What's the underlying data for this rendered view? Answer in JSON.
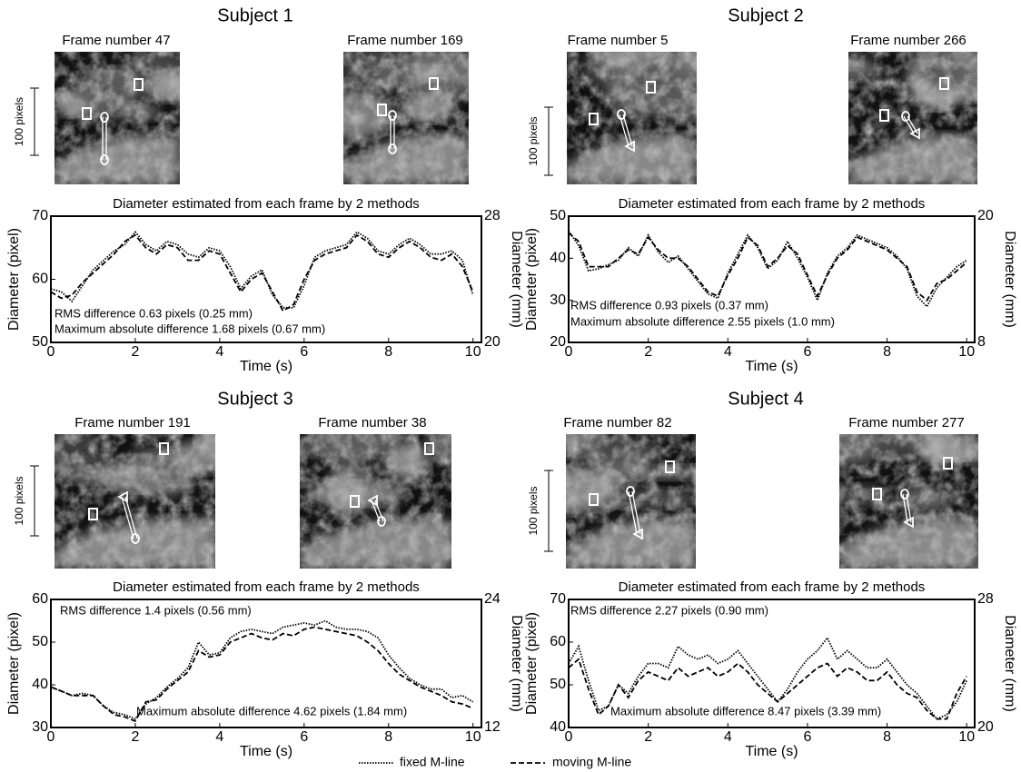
{
  "panels": [
    {
      "title": "Subject 1",
      "frames": [
        "Frame number 47",
        "Frame number 169"
      ],
      "scale_label": "100 pixels"
    },
    {
      "title": "Subject 2",
      "frames": [
        "Frame number 5",
        "Frame number 266"
      ],
      "scale_label": "100 pixels"
    },
    {
      "title": "Subject 3",
      "frames": [
        "Frame number 191",
        "Frame number 38"
      ],
      "scale_label": "100 pixels"
    },
    {
      "title": "Subject 4",
      "frames": [
        "Frame number 82",
        "Frame number 277"
      ],
      "scale_label": "100 pixels"
    }
  ],
  "legend": [
    {
      "name": "fixed M-line",
      "style": "dotted"
    },
    {
      "name": "moving M-line",
      "style": "dashed"
    }
  ],
  "chart_data": [
    {
      "type": "line",
      "title": "Diameter estimated from each frame by 2 methods",
      "x_label": "Time (s)",
      "y_label": "Diameter (pixel)",
      "y2_label": "Diameter (mm)",
      "annotations": [
        "RMS difference 0.63 pixels (0.25 mm)",
        "Maximum absolute difference 1.68 pixels (0.67 mm)"
      ],
      "xlim": [
        0,
        10.2
      ],
      "xticks": [
        0,
        2,
        4,
        6,
        8,
        10
      ],
      "ylim": [
        50,
        70
      ],
      "yticks": [
        50,
        60,
        70
      ],
      "y2lim": [
        20,
        28
      ],
      "y2ticks": [
        20,
        28
      ],
      "x": [
        0,
        0.25,
        0.5,
        0.75,
        1,
        1.25,
        1.5,
        1.75,
        2,
        2.25,
        2.5,
        2.75,
        3,
        3.25,
        3.5,
        3.75,
        4,
        4.25,
        4.5,
        4.75,
        5,
        5.25,
        5.5,
        5.75,
        6,
        6.25,
        6.5,
        6.75,
        7,
        7.25,
        7.5,
        7.75,
        8,
        8.25,
        8.5,
        8.75,
        9,
        9.25,
        9.5,
        9.75,
        10
      ],
      "series": [
        {
          "style": "dotted",
          "color": "#000000",
          "values": [
            58.5,
            58,
            56.5,
            59,
            61.5,
            63,
            64.5,
            65.5,
            67.5,
            65.5,
            64.5,
            66,
            65.5,
            64,
            63.5,
            65,
            64.5,
            62,
            58.5,
            60.5,
            61.5,
            57.5,
            55.5,
            55.5,
            59,
            63.5,
            64.5,
            65,
            65.5,
            67.5,
            66.5,
            64.5,
            64,
            65.5,
            66.5,
            65.5,
            64,
            64,
            64.5,
            63,
            57.5
          ]
        },
        {
          "style": "dashed",
          "color": "#000000",
          "values": [
            58,
            57,
            57.5,
            59.5,
            61,
            62.5,
            64,
            66,
            67,
            65,
            64,
            65.5,
            65,
            63,
            63,
            64.5,
            64,
            61,
            58,
            60,
            61,
            58,
            55,
            56,
            60,
            63,
            64,
            64.5,
            65,
            67,
            66,
            64,
            63.5,
            65,
            66,
            65,
            63.5,
            63,
            64,
            62,
            58
          ]
        }
      ]
    },
    {
      "type": "line",
      "title": "Diameter estimated from each frame by 2 methods",
      "x_label": "Time (s)",
      "y_label": "Diameter (pixel)",
      "y2_label": "Diameter (mm)",
      "annotations": [
        "RMS difference 0.93 pixels (0.37 mm)",
        "Maximum absolute difference 2.55 pixels (1.0 mm)"
      ],
      "xlim": [
        0,
        10.2
      ],
      "xticks": [
        0,
        2,
        4,
        6,
        8,
        10
      ],
      "ylim": [
        20,
        50
      ],
      "yticks": [
        20,
        30,
        40,
        50
      ],
      "y2lim": [
        8,
        20
      ],
      "y2ticks": [
        8,
        20
      ],
      "x": [
        0,
        0.25,
        0.5,
        0.75,
        1,
        1.25,
        1.5,
        1.75,
        2,
        2.25,
        2.5,
        2.75,
        3,
        3.25,
        3.5,
        3.75,
        4,
        4.25,
        4.5,
        4.75,
        5,
        5.25,
        5.5,
        5.75,
        6,
        6.25,
        6.5,
        6.75,
        7,
        7.25,
        7.5,
        7.75,
        8,
        8.25,
        8.5,
        8.75,
        9,
        9.25,
        9.5,
        9.75,
        10
      ],
      "series": [
        {
          "style": "dotted",
          "color": "#000000",
          "values": [
            46.5,
            43,
            37,
            37.5,
            38.5,
            39.5,
            42.5,
            40.5,
            45.5,
            41.5,
            39,
            40.5,
            37.5,
            34.5,
            31.5,
            30.5,
            36.5,
            41,
            45.5,
            42.5,
            37.5,
            39.5,
            44,
            40,
            35.5,
            30,
            36.5,
            40.5,
            42.5,
            45.5,
            44.5,
            43.5,
            42.5,
            40.5,
            37.5,
            31,
            28.5,
            33,
            35.5,
            38,
            39.5
          ]
        },
        {
          "style": "dashed",
          "color": "#000000",
          "values": [
            46,
            44,
            38,
            38,
            38,
            40,
            42,
            41,
            45,
            42,
            40,
            40,
            38,
            35,
            32,
            31,
            36,
            40,
            45,
            43,
            38,
            40,
            43,
            41,
            36,
            31,
            36,
            40,
            42,
            45,
            44,
            43,
            42,
            40,
            38,
            32,
            30,
            34,
            35,
            37,
            39
          ]
        }
      ]
    },
    {
      "type": "line",
      "title": "Diameter estimated from each frame by 2 methods",
      "x_label": "Time (s)",
      "y_label": "Diameter (pixel)",
      "y2_label": "Diameter (mm)",
      "annotations": [
        "RMS difference 1.4 pixels (0.56 mm)",
        "Maximum absolute difference 4.62 pixels (1.84 mm)"
      ],
      "xlim": [
        0,
        10.2
      ],
      "xticks": [
        0,
        2,
        4,
        6,
        8,
        10
      ],
      "ylim": [
        30,
        60
      ],
      "yticks": [
        30,
        40,
        50,
        60
      ],
      "y2lim": [
        12,
        24
      ],
      "y2ticks": [
        12,
        24
      ],
      "x": [
        0,
        0.25,
        0.5,
        0.75,
        1,
        1.25,
        1.5,
        1.75,
        2,
        2.25,
        2.5,
        2.75,
        3,
        3.25,
        3.5,
        3.75,
        4,
        4.25,
        4.5,
        4.75,
        5,
        5.25,
        5.5,
        5.75,
        6,
        6.25,
        6.5,
        6.75,
        7,
        7.25,
        7.5,
        7.75,
        8,
        8.25,
        8.5,
        8.75,
        9,
        9.25,
        9.5,
        9.75,
        10
      ],
      "series": [
        {
          "style": "dotted",
          "color": "#000000",
          "values": [
            39.5,
            38.5,
            37.5,
            38,
            37.5,
            35,
            33.5,
            33,
            32,
            35.5,
            37,
            39.5,
            41.5,
            44,
            50,
            47,
            47.5,
            51,
            52.5,
            53,
            52.5,
            52,
            53.5,
            54,
            54.5,
            54,
            55,
            53.5,
            53,
            53,
            52.5,
            51,
            47,
            44,
            41.5,
            40,
            39,
            39,
            37,
            37.5,
            36
          ]
        },
        {
          "style": "dashed",
          "color": "#000000",
          "values": [
            39.5,
            38.5,
            37.5,
            37.5,
            37.5,
            35,
            33,
            32.5,
            31.5,
            36,
            36.5,
            39,
            41,
            43,
            48,
            46.5,
            47,
            50,
            51,
            52,
            51,
            50.5,
            52,
            51.5,
            53,
            53.5,
            53,
            52.5,
            52,
            51.5,
            50,
            48,
            45,
            42.5,
            41,
            39.5,
            38.5,
            37.5,
            36,
            35.5,
            34.5
          ]
        }
      ]
    },
    {
      "type": "line",
      "title": "Diameter estimated from each frame by 2 methods",
      "x_label": "Time (s)",
      "y_label": "Diameter (pixel)",
      "y2_label": "Diameter (mm)",
      "annotations": [
        "RMS difference 2.27 pixels (0.90 mm)",
        "Maximum absolute difference 8.47 pixels (3.39 mm)"
      ],
      "xlim": [
        0,
        10.2
      ],
      "xticks": [
        0,
        2,
        4,
        6,
        8,
        10
      ],
      "ylim": [
        40,
        70
      ],
      "yticks": [
        40,
        50,
        60,
        70
      ],
      "y2lim": [
        20,
        28
      ],
      "y2ticks": [
        20,
        28
      ],
      "x": [
        0,
        0.25,
        0.5,
        0.75,
        1,
        1.25,
        1.5,
        1.75,
        2,
        2.25,
        2.5,
        2.75,
        3,
        3.25,
        3.5,
        3.75,
        4,
        4.25,
        4.5,
        4.75,
        5,
        5.25,
        5.5,
        5.75,
        6,
        6.25,
        6.5,
        6.75,
        7,
        7.25,
        7.5,
        7.75,
        8,
        8.25,
        8.5,
        8.75,
        9,
        9.25,
        9.5,
        9.75,
        10
      ],
      "series": [
        {
          "style": "dotted",
          "color": "#000000",
          "values": [
            55,
            59,
            51,
            44,
            45,
            50,
            48,
            52,
            55,
            55,
            54,
            59,
            57,
            56,
            57,
            55,
            56,
            58,
            55,
            52,
            49,
            46,
            49,
            53,
            56,
            58,
            61,
            56,
            58,
            56,
            54,
            54,
            56,
            53,
            50,
            48,
            45,
            42,
            43,
            46,
            51
          ]
        },
        {
          "style": "dashed",
          "color": "#000000",
          "values": [
            54,
            56,
            49,
            43,
            45,
            50,
            47,
            51,
            53,
            52,
            51,
            54,
            52,
            53,
            54,
            52,
            53,
            55,
            53,
            50,
            48,
            46,
            48,
            50,
            52,
            54,
            55,
            52,
            54,
            53,
            51,
            51,
            53,
            50,
            48,
            47,
            44,
            42,
            42,
            48,
            52
          ]
        }
      ]
    }
  ]
}
